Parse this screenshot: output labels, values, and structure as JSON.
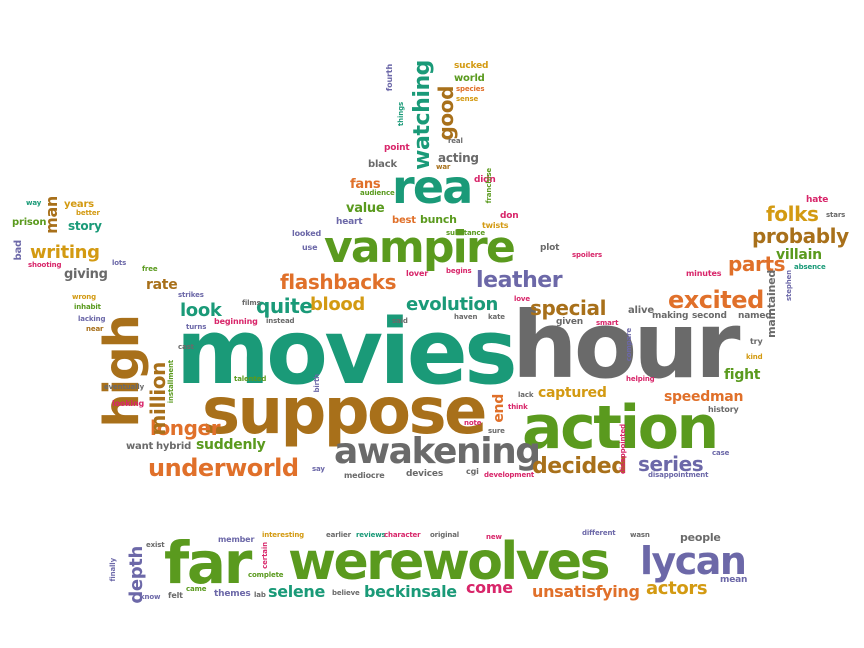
{
  "colors": {
    "green": "#5a9a1e",
    "teal": "#1a9a78",
    "orange": "#e0702a",
    "brown": "#a8701a",
    "gold": "#d39a12",
    "gray": "#6a6a6a",
    "purple": "#6c68a8",
    "pink": "#d8266a"
  },
  "words": {
    "movies": "movies",
    "hour": "hour",
    "suppose": "suppose",
    "action": "action",
    "vampire": "vampire",
    "rea": "rea",
    "high": "high",
    "awakening": "awakening",
    "underworld": "underworld",
    "werewolves": "werewolves",
    "far": "far",
    "lycan": "lycan",
    "excited": "excited",
    "flashbacks": "flashbacks",
    "leather": "leather",
    "evolution": "evolution",
    "special": "special",
    "probably": "probably",
    "parts": "parts",
    "folks": "folks",
    "longer": "longer",
    "decided": "decided",
    "series": "series",
    "million": "million",
    "watching": "watching",
    "good": "good",
    "quite": "quite",
    "blood": "blood",
    "writing": "writing",
    "look": "look",
    "rate": "rate",
    "suddenly": "suddenly",
    "captured": "captured",
    "speedman": "speedman",
    "fight": "fight",
    "selene": "selene",
    "beckinsale": "beckinsale",
    "come": "come",
    "unsatisfying": "unsatisfying",
    "actors": "actors",
    "depth": "depth",
    "mean": "mean",
    "people": "people",
    "end": "end",
    "villain": "villain",
    "maintained": "maintained",
    "story": "story",
    "man": "man",
    "years": "years",
    "prison": "prison",
    "bad": "bad",
    "giving": "giving",
    "value": "value",
    "fans": "fans",
    "acting": "acting",
    "black": "black",
    "point": "point",
    "things": "things",
    "fourth": "fourth",
    "sucked": "sucked",
    "world": "world",
    "species": "species",
    "sense": "sense",
    "real": "real",
    "war": "war",
    "audience": "audience",
    "heart": "heart",
    "best": "best",
    "bunch": "bunch",
    "looked": "looked",
    "use": "use",
    "didn": "didn",
    "franchise": "franchise",
    "don": "don",
    "twists": "twists",
    "substance": "substance",
    "plot": "plot",
    "lover": "lover",
    "begins": "begins",
    "love": "love",
    "spoilers": "spoilers",
    "alive": "alive",
    "making": "making",
    "second": "second",
    "named": "named",
    "minutes": "minutes",
    "hate": "hate",
    "stars": "stars",
    "absence": "absence",
    "stephen": "stephen",
    "try": "try",
    "kind": "kind",
    "history": "history",
    "helping": "helping",
    "compare": "compare",
    "given": "given",
    "smart": "smart",
    "lack": "lack",
    "think": "think",
    "sure": "sure",
    "note": "note",
    "cgi": "cgi",
    "development": "development",
    "devices": "devices",
    "mediocre": "mediocre",
    "say": "say",
    "birth": "birth",
    "talented": "talented",
    "hybrid": "hybrid",
    "want": "want",
    "looking": "looking",
    "eventually": "eventually",
    "installment": "installment",
    "cast": "cast",
    "turns": "turns",
    "beginning": "beginning",
    "films": "films",
    "strikes": "strikes",
    "free": "free",
    "lots": "lots",
    "wrong": "wrong",
    "inhabit": "inhabit",
    "lacking": "lacking",
    "near": "near",
    "shooting": "shooting",
    "way": "way",
    "better": "better",
    "instead": "instead",
    "said": "said",
    "haven": "haven",
    "kate": "kate",
    "disappointed": "disappointed",
    "disappointment": "disappointment",
    "case": "case",
    "member": "member",
    "interesting": "interesting",
    "earlier": "earlier",
    "reviews": "reviews",
    "character": "character",
    "original": "original",
    "new": "new",
    "different": "different",
    "wasn": "wasn",
    "exist": "exist",
    "certain": "certain",
    "complete": "complete",
    "finally": "finally",
    "know": "know",
    "felt": "felt",
    "came": "came",
    "themes": "themes",
    "lab": "lab",
    "believe": "believe"
  }
}
